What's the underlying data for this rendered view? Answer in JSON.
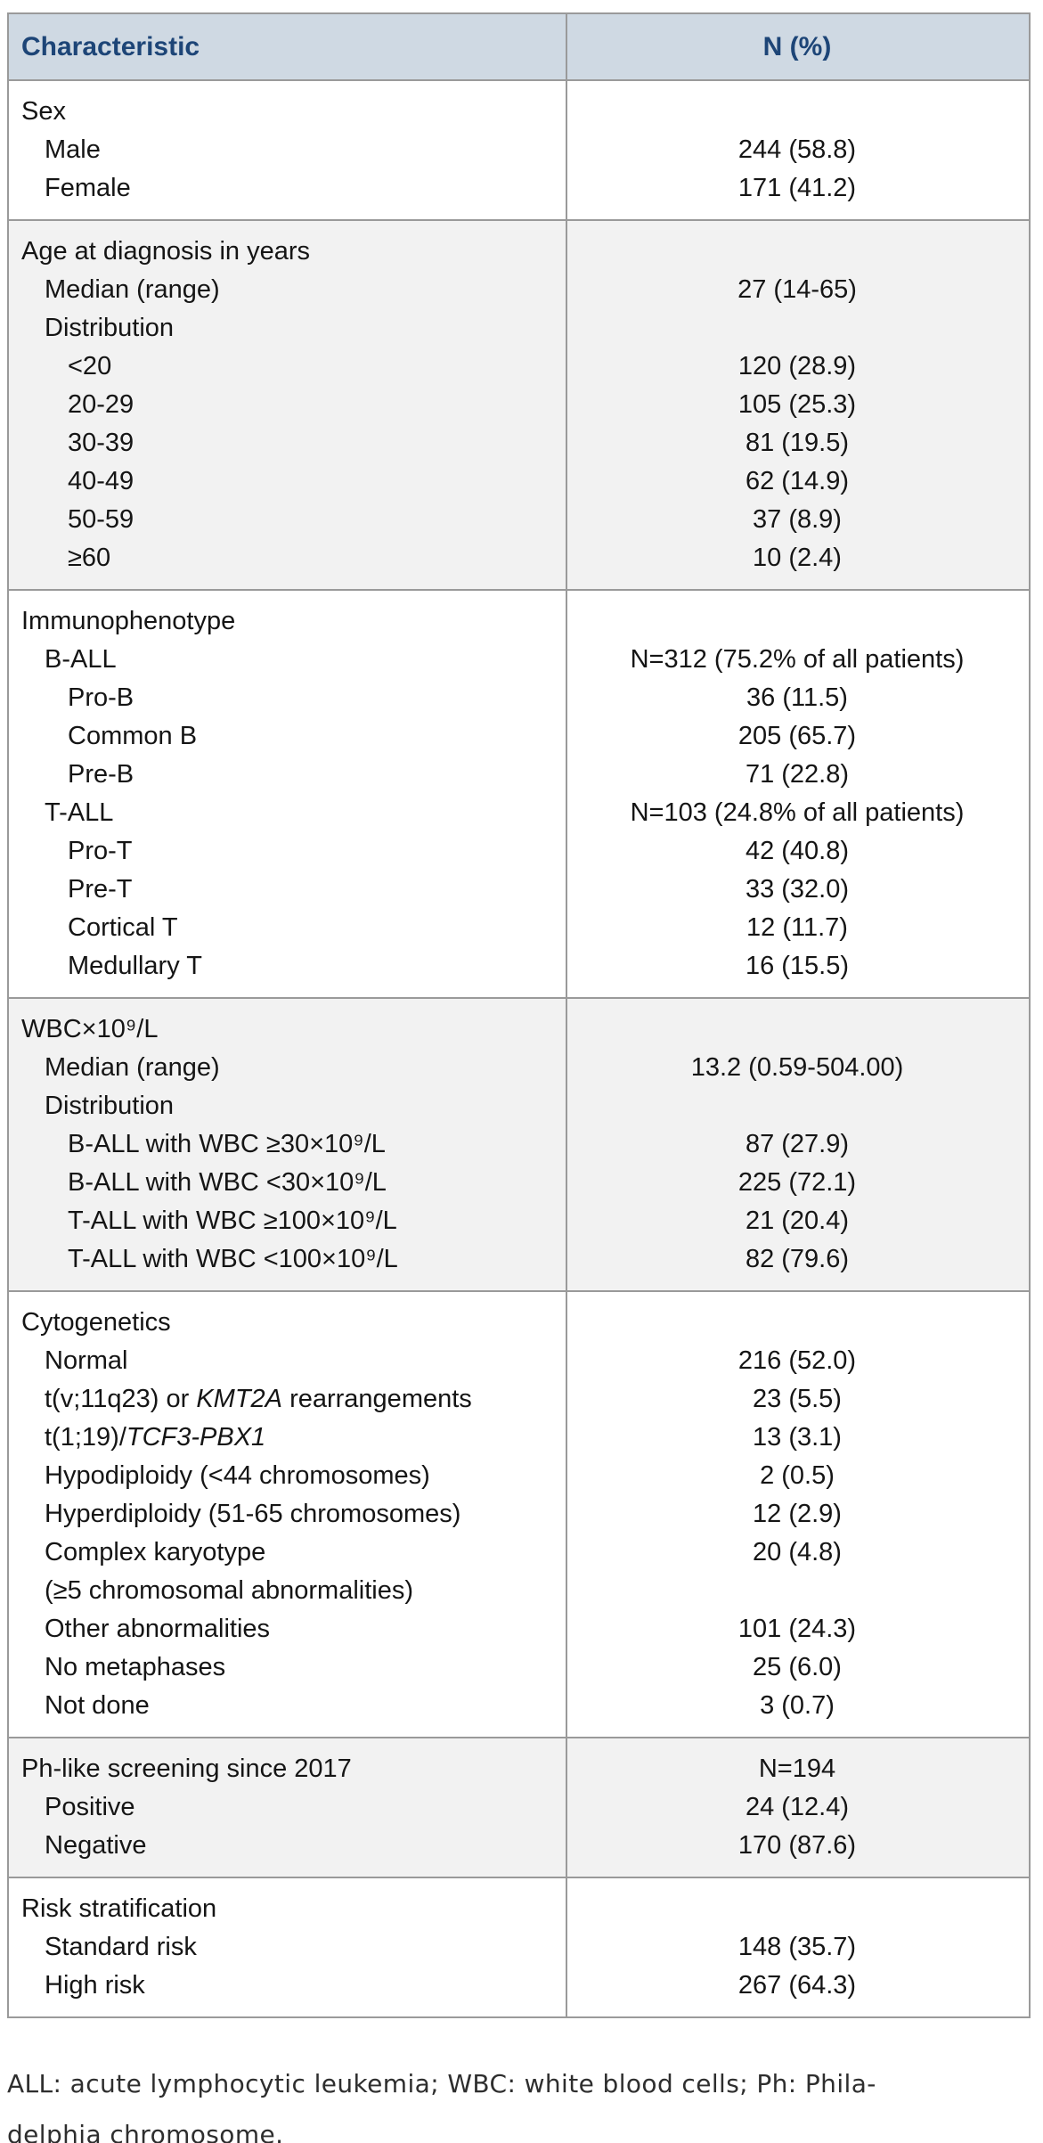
{
  "colors": {
    "header_bg": "#cfd9e3",
    "header_text": "#1d4577",
    "border": "#9a9a9a",
    "shaded_section_bg": "#f2f2f2",
    "body_text": "#151515"
  },
  "table": {
    "columns": [
      "Characteristic",
      "N (%)"
    ],
    "sections": [
      {
        "shaded": false,
        "rows": [
          {
            "indent": 0,
            "label": [
              {
                "t": "Sex"
              }
            ],
            "value": ""
          },
          {
            "indent": 1,
            "label": [
              {
                "t": "Male"
              }
            ],
            "value": "244 (58.8)"
          },
          {
            "indent": 1,
            "label": [
              {
                "t": "Female"
              }
            ],
            "value": "171 (41.2)"
          }
        ]
      },
      {
        "shaded": true,
        "rows": [
          {
            "indent": 0,
            "label": [
              {
                "t": "Age at diagnosis in years"
              }
            ],
            "value": ""
          },
          {
            "indent": 1,
            "label": [
              {
                "t": "Median (range)"
              }
            ],
            "value": "27 (14-65)"
          },
          {
            "indent": 1,
            "label": [
              {
                "t": "Distribution"
              }
            ],
            "value": ""
          },
          {
            "indent": 2,
            "label": [
              {
                "t": "<20"
              }
            ],
            "value": "120 (28.9)"
          },
          {
            "indent": 2,
            "label": [
              {
                "t": "20-29"
              }
            ],
            "value": "105 (25.3)"
          },
          {
            "indent": 2,
            "label": [
              {
                "t": "30-39"
              }
            ],
            "value": "81 (19.5)"
          },
          {
            "indent": 2,
            "label": [
              {
                "t": "40-49"
              }
            ],
            "value": "62 (14.9)"
          },
          {
            "indent": 2,
            "label": [
              {
                "t": "50-59"
              }
            ],
            "value": "37 (8.9)"
          },
          {
            "indent": 2,
            "label": [
              {
                "t": "≥60"
              }
            ],
            "value": "10 (2.4)"
          }
        ]
      },
      {
        "shaded": false,
        "rows": [
          {
            "indent": 0,
            "label": [
              {
                "t": "Immunophenotype"
              }
            ],
            "value": ""
          },
          {
            "indent": 1,
            "label": [
              {
                "t": "B-ALL"
              }
            ],
            "value": "N=312 (75.2% of all patients)"
          },
          {
            "indent": 2,
            "label": [
              {
                "t": "Pro-B"
              }
            ],
            "value": "36 (11.5)"
          },
          {
            "indent": 2,
            "label": [
              {
                "t": "Common B"
              }
            ],
            "value": "205 (65.7)"
          },
          {
            "indent": 2,
            "label": [
              {
                "t": "Pre-B"
              }
            ],
            "value": "71 (22.8)"
          },
          {
            "indent": 1,
            "label": [
              {
                "t": "T-ALL"
              }
            ],
            "value": "N=103 (24.8% of all patients)"
          },
          {
            "indent": 2,
            "label": [
              {
                "t": "Pro-T"
              }
            ],
            "value": "42 (40.8)"
          },
          {
            "indent": 2,
            "label": [
              {
                "t": "Pre-T"
              }
            ],
            "value": "33 (32.0)"
          },
          {
            "indent": 2,
            "label": [
              {
                "t": "Cortical T"
              }
            ],
            "value": "12 (11.7)"
          },
          {
            "indent": 2,
            "label": [
              {
                "t": "Medullary T"
              }
            ],
            "value": "16 (15.5)"
          }
        ]
      },
      {
        "shaded": true,
        "rows": [
          {
            "indent": 0,
            "label": [
              {
                "t": "WBC×10⁹/L"
              }
            ],
            "value": ""
          },
          {
            "indent": 1,
            "label": [
              {
                "t": "Median (range)"
              }
            ],
            "value": "13.2 (0.59-504.00)"
          },
          {
            "indent": 1,
            "label": [
              {
                "t": "Distribution"
              }
            ],
            "value": ""
          },
          {
            "indent": 2,
            "label": [
              {
                "t": "B-ALL with WBC ≥30×10⁹/L"
              }
            ],
            "value": "87 (27.9)"
          },
          {
            "indent": 2,
            "label": [
              {
                "t": "B-ALL with WBC <30×10⁹/L"
              }
            ],
            "value": "225 (72.1)"
          },
          {
            "indent": 2,
            "label": [
              {
                "t": "T-ALL with WBC ≥100×10⁹/L"
              }
            ],
            "value": "21 (20.4)"
          },
          {
            "indent": 2,
            "label": [
              {
                "t": "T-ALL with WBC <100×10⁹/L"
              }
            ],
            "value": "82 (79.6)"
          }
        ]
      },
      {
        "shaded": false,
        "rows": [
          {
            "indent": 0,
            "label": [
              {
                "t": "Cytogenetics"
              }
            ],
            "value": ""
          },
          {
            "indent": 1,
            "label": [
              {
                "t": "Normal"
              }
            ],
            "value": "216 (52.0)"
          },
          {
            "indent": 1,
            "label": [
              {
                "t": "t(v;11q23) or "
              },
              {
                "t": "KMT2A",
                "i": true
              },
              {
                "t": " rearrangements"
              }
            ],
            "value": "23 (5.5)"
          },
          {
            "indent": 1,
            "label": [
              {
                "t": "t(1;19)/"
              },
              {
                "t": "TCF3-PBX1",
                "i": true
              }
            ],
            "value": "13 (3.1)"
          },
          {
            "indent": 1,
            "label": [
              {
                "t": "Hypodiploidy (<44 chromosomes)"
              }
            ],
            "value": "2 (0.5)"
          },
          {
            "indent": 1,
            "label": [
              {
                "t": "Hyperdiploidy (51-65 chromosomes)"
              }
            ],
            "value": "12 (2.9)"
          },
          {
            "indent": 1,
            "label": [
              {
                "t": "Complex karyotype"
              }
            ],
            "value": "20 (4.8)"
          },
          {
            "indent": 1,
            "label": [
              {
                "t": "(≥5 chromosomal abnormalities)"
              }
            ],
            "value": ""
          },
          {
            "indent": 1,
            "label": [
              {
                "t": "Other abnormalities"
              }
            ],
            "value": "101 (24.3)"
          },
          {
            "indent": 1,
            "label": [
              {
                "t": "No metaphases"
              }
            ],
            "value": "25 (6.0)"
          },
          {
            "indent": 1,
            "label": [
              {
                "t": "Not done"
              }
            ],
            "value": "3 (0.7)"
          }
        ]
      },
      {
        "shaded": true,
        "rows": [
          {
            "indent": 0,
            "label": [
              {
                "t": "Ph-like screening since 2017"
              }
            ],
            "value": "N=194"
          },
          {
            "indent": 1,
            "label": [
              {
                "t": "Positive"
              }
            ],
            "value": "24 (12.4)"
          },
          {
            "indent": 1,
            "label": [
              {
                "t": "Negative"
              }
            ],
            "value": "170 (87.6)"
          }
        ]
      },
      {
        "shaded": false,
        "rows": [
          {
            "indent": 0,
            "label": [
              {
                "t": "Risk stratification"
              }
            ],
            "value": ""
          },
          {
            "indent": 1,
            "label": [
              {
                "t": "Standard risk"
              }
            ],
            "value": "148 (35.7)"
          },
          {
            "indent": 1,
            "label": [
              {
                "t": "High risk"
              }
            ],
            "value": "267 (64.3)"
          }
        ]
      }
    ]
  },
  "footnote": {
    "lines": [
      "ALL: acute lymphocytic leukemia; WBC: white blood cells; Ph: Phila-",
      "delphia chromosome."
    ]
  }
}
